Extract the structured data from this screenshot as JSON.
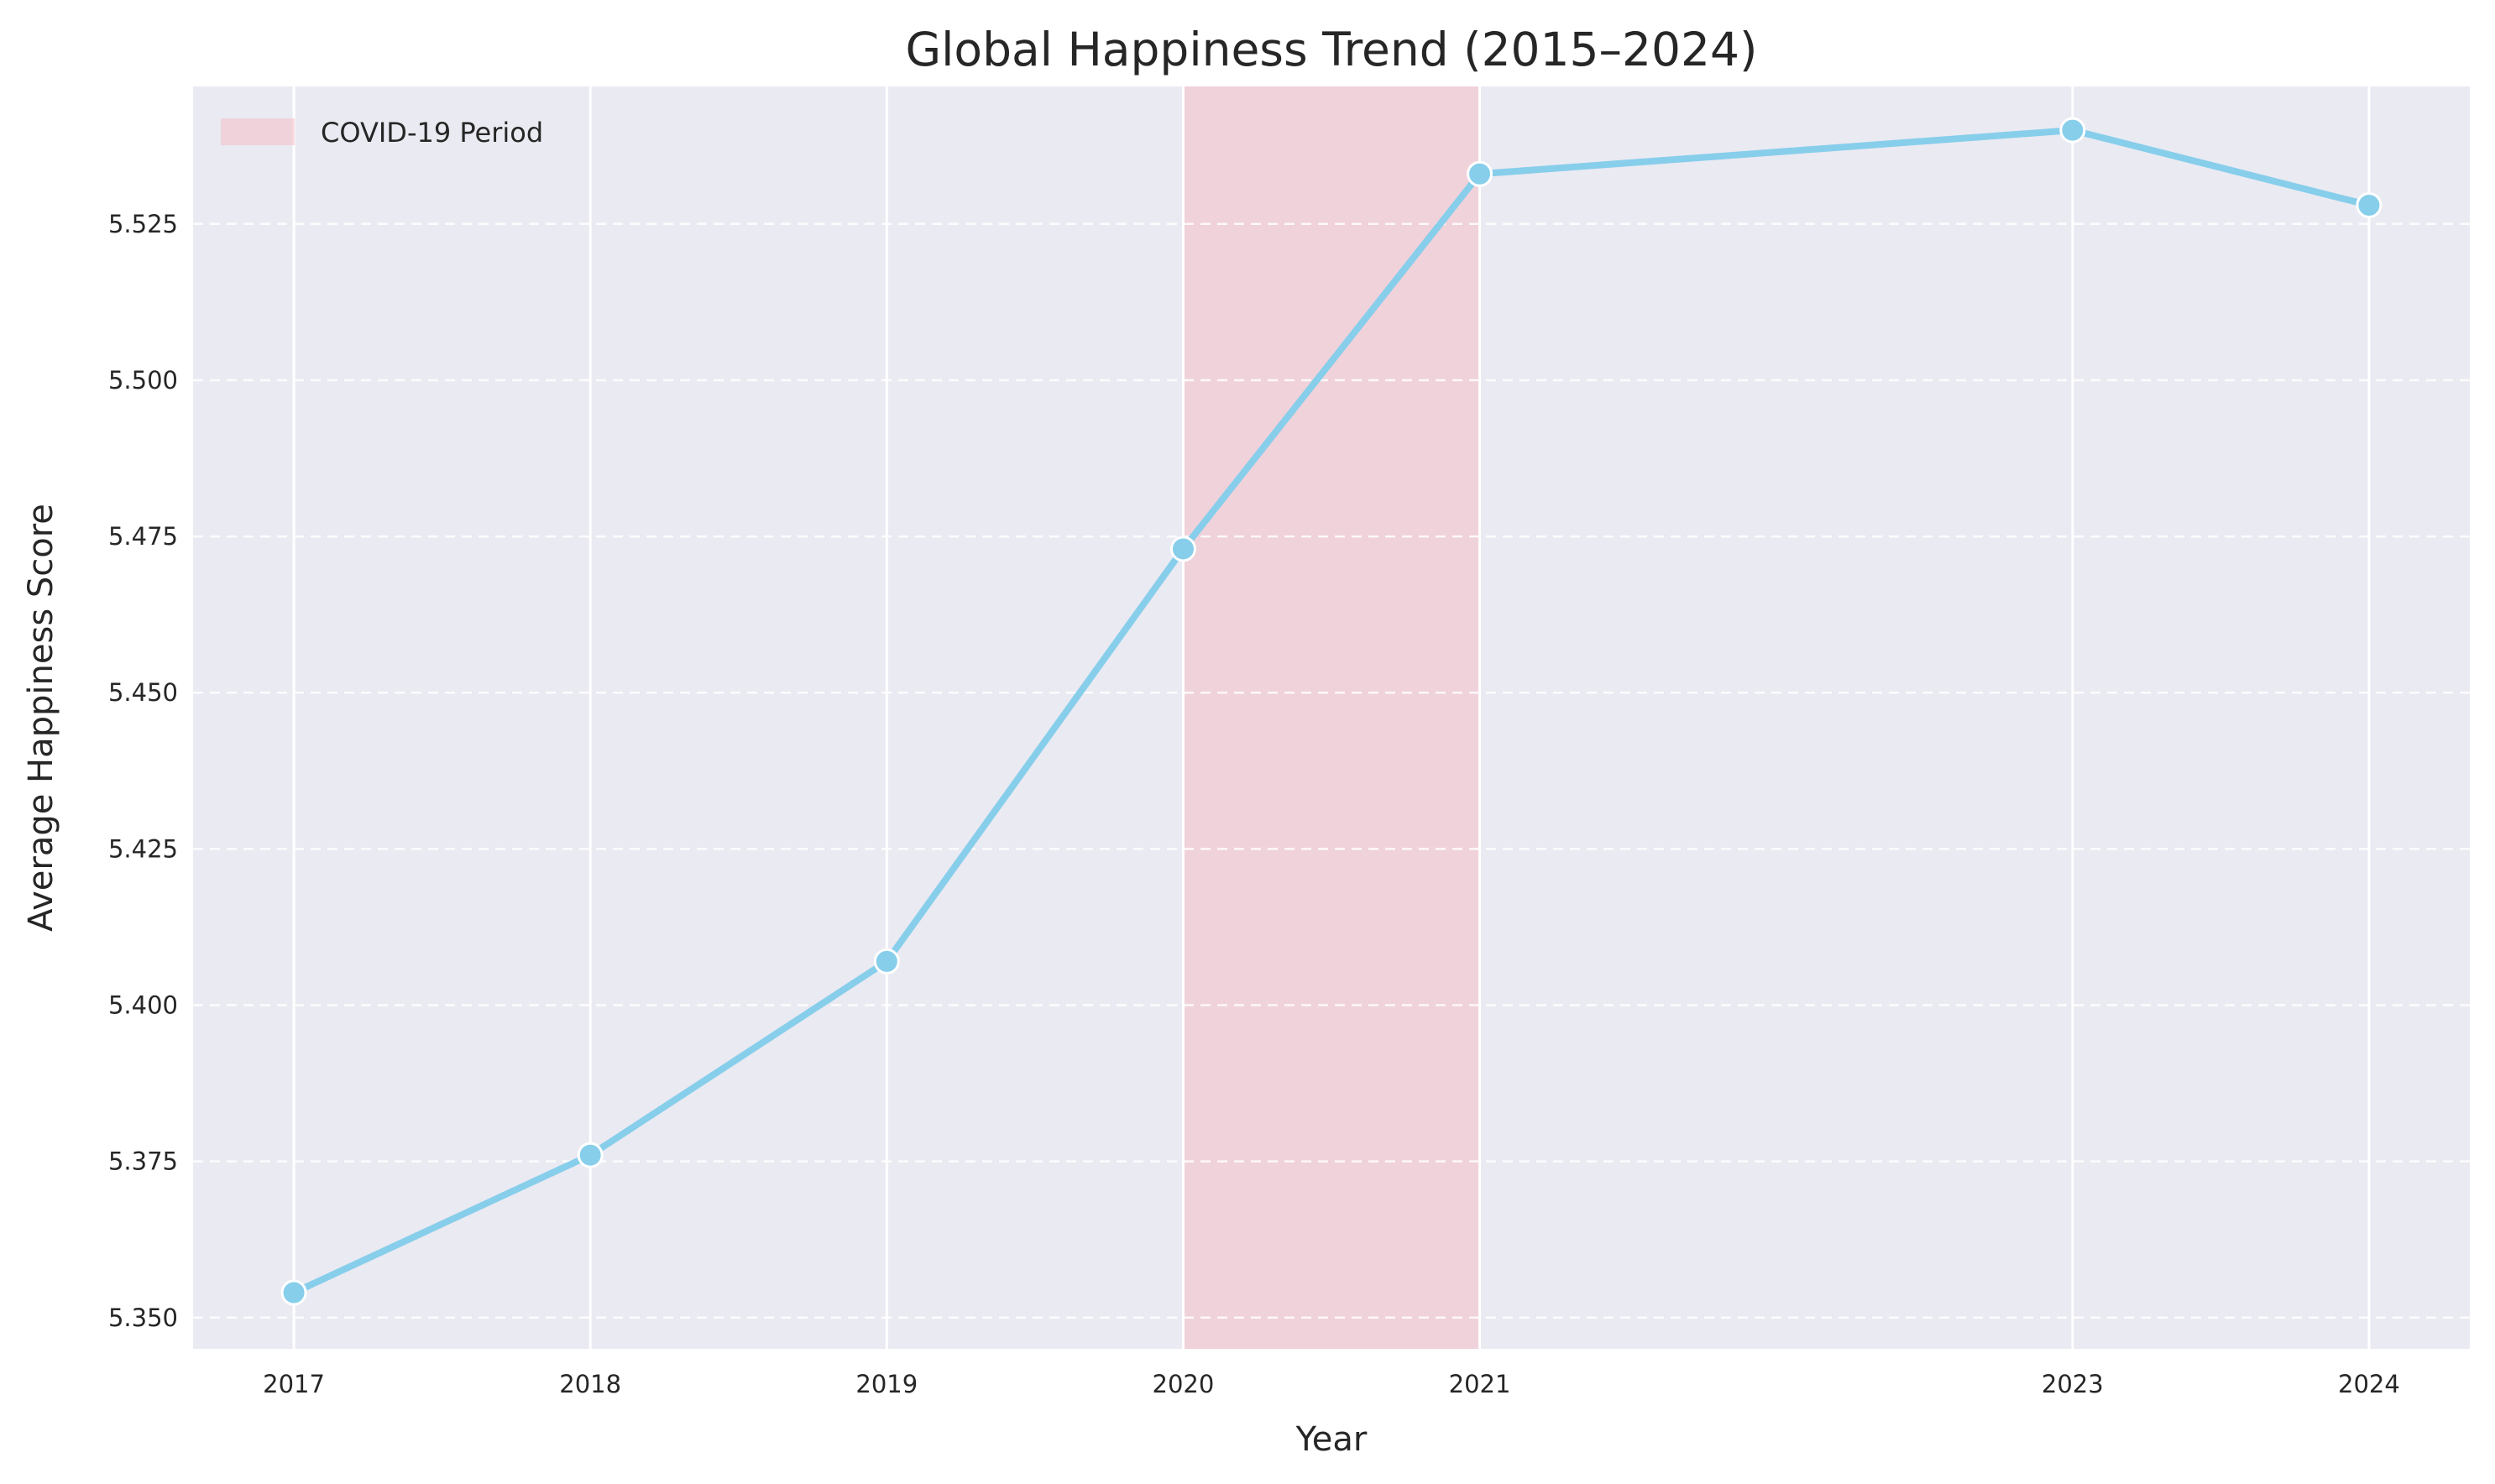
{
  "chart_data": {
    "type": "line",
    "title": "Global Happiness Trend (2015–2024)",
    "xlabel": "Year",
    "ylabel": "Average Happiness Score",
    "x": [
      2017,
      2018,
      2019,
      2020,
      2021,
      2023,
      2024
    ],
    "xtick_labels": [
      "2017",
      "2018",
      "2019",
      "2020",
      "2021",
      "2023",
      "2024"
    ],
    "series": [
      {
        "values": [
          5.354,
          5.376,
          5.407,
          5.473,
          5.533,
          5.54,
          5.528
        ],
        "color": "#87ceeb"
      }
    ],
    "xlim": [
      2016.66,
      2024.34
    ],
    "ylim": [
      5.345,
      5.547
    ],
    "yticks": [
      5.35,
      5.375,
      5.4,
      5.425,
      5.45,
      5.475,
      5.5,
      5.525
    ],
    "ytick_labels": [
      "5.350",
      "5.375",
      "5.400",
      "5.425",
      "5.450",
      "5.475",
      "5.500",
      "5.525"
    ],
    "shaded_region": {
      "x_start": 2020,
      "x_end": 2021,
      "label": "COVID-19 Period",
      "color": "#f4c2c9"
    },
    "legend": {
      "position": "top-left",
      "entries": [
        "COVID-19 Period"
      ]
    },
    "grid": true,
    "background_color": "#eaeaf2"
  }
}
